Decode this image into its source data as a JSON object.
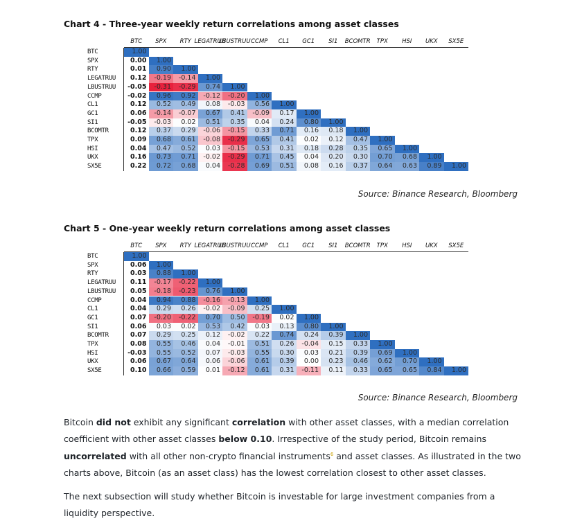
{
  "chart4": {
    "title": "Chart 4 - Three-year weekly return correlations among asset classes",
    "source": "Source: Binance Research, Bloomberg",
    "labels": [
      "BTC",
      "SPX",
      "RTY",
      "LEGATRUU",
      "LBUSTRUU",
      "CCMP",
      "CL1",
      "GC1",
      "SI1",
      "BCOMTR",
      "TPX",
      "HSI",
      "UKX",
      "SX5E"
    ],
    "rows": [
      [
        "1.00"
      ],
      [
        "0.00",
        "1.00"
      ],
      [
        "0.01",
        "0.90",
        "1.00"
      ],
      [
        "0.12",
        "-0.19",
        "-0.14",
        "1.00"
      ],
      [
        "-0.05",
        "-0.31",
        "-0.29",
        "0.74",
        "1.00"
      ],
      [
        "-0.02",
        "0.96",
        "0.92",
        "-0.12",
        "-0.20",
        "1.00"
      ],
      [
        "0.12",
        "0.52",
        "0.49",
        "0.08",
        "-0.03",
        "0.56",
        "1.00"
      ],
      [
        "0.06",
        "-0.14",
        "-0.07",
        "0.67",
        "0.41",
        "-0.09",
        "0.17",
        "1.00"
      ],
      [
        "-0.05",
        "-0.03",
        "0.02",
        "0.51",
        "0.35",
        "0.04",
        "0.24",
        "0.80",
        "1.00"
      ],
      [
        "0.12",
        "0.37",
        "0.29",
        "-0.06",
        "-0.15",
        "0.33",
        "0.71",
        "0.16",
        "0.18",
        "1.00"
      ],
      [
        "0.09",
        "0.68",
        "0.61",
        "-0.08",
        "-0.29",
        "0.65",
        "0.41",
        "0.02",
        "0.12",
        "0.47",
        "1.00"
      ],
      [
        "0.04",
        "0.47",
        "0.52",
        "0.03",
        "-0.15",
        "0.53",
        "0.31",
        "0.18",
        "0.28",
        "0.35",
        "0.65",
        "1.00"
      ],
      [
        "0.16",
        "0.73",
        "0.71",
        "-0.02",
        "-0.29",
        "0.71",
        "0.45",
        "0.04",
        "0.20",
        "0.30",
        "0.70",
        "0.68",
        "1.00"
      ],
      [
        "0.22",
        "0.72",
        "0.68",
        "0.04",
        "-0.28",
        "0.69",
        "0.51",
        "0.08",
        "0.16",
        "0.37",
        "0.64",
        "0.63",
        "0.89",
        "1.00"
      ]
    ]
  },
  "chart5": {
    "title": "Chart 5 - One-year weekly return correlations among asset classes",
    "source": "Source: Binance Research, Bloomberg",
    "labels": [
      "BTC",
      "SPX",
      "RTY",
      "LEGATRUU",
      "LBUSTRUU",
      "CCMP",
      "CL1",
      "GC1",
      "SI1",
      "BCOMTR",
      "TPX",
      "HSI",
      "UKX",
      "SX5E"
    ],
    "rows": [
      [
        "1.00"
      ],
      [
        "0.06",
        "1.00"
      ],
      [
        "0.03",
        "0.88",
        "1.00"
      ],
      [
        "0.11",
        "-0.17",
        "-0.22",
        "1.00"
      ],
      [
        "0.05",
        "-0.18",
        "-0.23",
        "0.76",
        "1.00"
      ],
      [
        "0.04",
        "0.94",
        "0.88",
        "-0.16",
        "-0.13",
        "1.00"
      ],
      [
        "0.04",
        "0.29",
        "0.26",
        "-0.02",
        "-0.09",
        "0.25",
        "1.00"
      ],
      [
        "0.07",
        "-0.20",
        "-0.22",
        "0.70",
        "0.50",
        "-0.19",
        "0.02",
        "1.00"
      ],
      [
        "0.06",
        "0.03",
        "0.02",
        "0.53",
        "0.42",
        "0.03",
        "0.13",
        "0.80",
        "1.00"
      ],
      [
        "0.07",
        "0.29",
        "0.25",
        "0.12",
        "-0.02",
        "0.22",
        "0.74",
        "0.24",
        "0.39",
        "1.00"
      ],
      [
        "0.08",
        "0.55",
        "0.46",
        "0.04",
        "-0.01",
        "0.51",
        "0.26",
        "-0.04",
        "0.15",
        "0.33",
        "1.00"
      ],
      [
        "-0.03",
        "0.55",
        "0.52",
        "0.07",
        "-0.03",
        "0.55",
        "0.30",
        "0.03",
        "0.21",
        "0.39",
        "0.69",
        "1.00"
      ],
      [
        "0.06",
        "0.67",
        "0.64",
        "0.06",
        "-0.06",
        "0.61",
        "0.39",
        "0.00",
        "0.23",
        "0.46",
        "0.62",
        "0.70",
        "1.00"
      ],
      [
        "0.10",
        "0.66",
        "0.59",
        "0.01",
        "-0.12",
        "0.61",
        "0.31",
        "-0.11",
        "0.11",
        "0.33",
        "0.65",
        "0.65",
        "0.84",
        "1.00"
      ]
    ]
  },
  "paragraph1": {
    "t1": "Bitcoin ",
    "b1": "did not",
    "t2": " exhibit any significant ",
    "b2": "correlation",
    "t3": " with other asset classes, with a median correlation coefficient with other asset classes ",
    "b3": "below 0.10",
    "t4": ". Irrespective of the study period, Bitcoin remains ",
    "b4": "uncorrelated",
    "t5": " with all other non-crypto financial instruments",
    "footnote": "6",
    "t6": " and asset classes. As illustrated in the two charts above, Bitcoin (as an asset class) has the lowest correlation closest to other asset classes."
  },
  "paragraph2": "The next subsection will study whether Bitcoin is investable for large investment companies from a liquidity perspective.",
  "colors": {
    "strong_positive": "#2f6fc0",
    "weak_positive": "#ffffff",
    "strong_negative": "#e8213d"
  }
}
